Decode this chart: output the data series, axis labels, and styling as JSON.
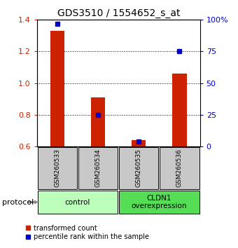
{
  "title": "GDS3510 / 1554652_s_at",
  "samples": [
    "GSM260533",
    "GSM260534",
    "GSM260535",
    "GSM260536"
  ],
  "red_values": [
    1.33,
    0.91,
    0.64,
    1.06
  ],
  "blue_values": [
    97,
    25,
    4,
    75
  ],
  "ylim_left": [
    0.6,
    1.4
  ],
  "ylim_right": [
    0,
    100
  ],
  "yticks_left": [
    0.6,
    0.8,
    1.0,
    1.2,
    1.4
  ],
  "yticks_right": [
    0,
    25,
    50,
    75,
    100
  ],
  "ytick_labels_right": [
    "0",
    "25",
    "50",
    "75",
    "100%"
  ],
  "groups": [
    {
      "label": "control",
      "samples": [
        0,
        1
      ],
      "color": "#bbffbb"
    },
    {
      "label": "CLDN1\noverexpression",
      "samples": [
        2,
        3
      ],
      "color": "#55dd55"
    }
  ],
  "bar_color": "#cc2200",
  "marker_color": "#0000cc",
  "bg_label": "#c8c8c8",
  "protocol_label": "protocol",
  "legend_red": "transformed count",
  "legend_blue": "percentile rank within the sample",
  "bar_width": 0.35,
  "marker_size": 5
}
